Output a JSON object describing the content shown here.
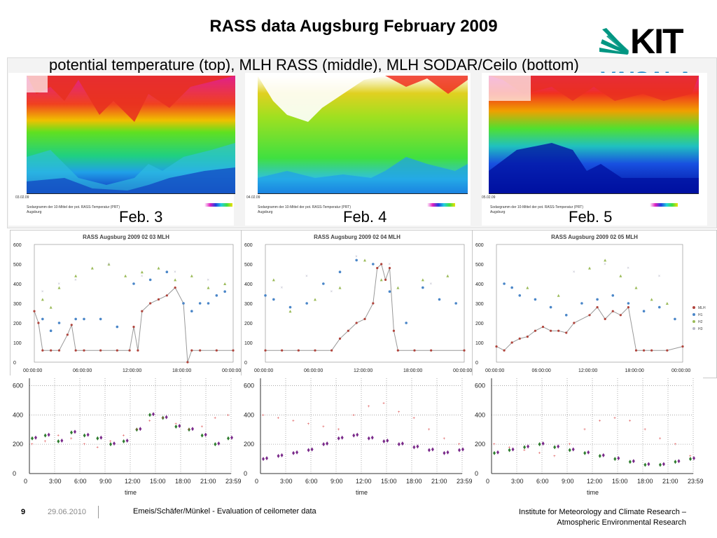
{
  "title": "RASS data Augsburg February 2009",
  "subtitle": "potential temperature (top), MLH RASS (middle), MLH SODAR/Ceilo (bottom)",
  "logos": {
    "kit": "KIT",
    "vaisala": "VAISALA"
  },
  "day_labels": [
    "Feb. 3",
    "Feb. 4",
    "Feb. 5"
  ],
  "heatmap_dates": [
    "03.02.09",
    "04.02.09",
    "05.02.09"
  ],
  "heatmap_caption": "Sodargramm der 10-Mittel der pot. RASS-Temperatur (PRT)",
  "heatmap_station": "Augsburg",
  "mlh_titles": [
    "RASS Augsburg 2009 02 03 MLH",
    "RASS Augsburg 2009 02 04 MLH",
    "RASS Augsburg 2009 02 05 MLH"
  ],
  "mlh_y_ticks": [
    "600",
    "500",
    "400",
    "300",
    "200",
    "100",
    "0"
  ],
  "mlh_x_ticks": [
    "00:00:00",
    "06:00:00",
    "12:00:00",
    "18:00:00",
    "00:00:00"
  ],
  "mlh_legend": [
    "MLH",
    "H1",
    "H2",
    "H3"
  ],
  "ceilo_y_ticks": [
    "600",
    "400",
    "200",
    "0"
  ],
  "ceilo_x_ticks": [
    "0",
    "3:00",
    "6:00",
    "9:00",
    "12:00",
    "15:00",
    "18:00",
    "21:00",
    "23:59"
  ],
  "ceilo_xlabel": "time",
  "colors": {
    "mlh": "#b0433b",
    "h1": "#4a86c8",
    "h2": "#9bbb59",
    "h3": "#b8b8c8",
    "ceilo_sodar": "#7a2a8a",
    "ceilo_green": "#2f7d2f",
    "ceilo_red": "#d94040",
    "vaisala": "#1a86c8"
  },
  "footer": {
    "page": "9",
    "date": "29.06.2010",
    "center": "Emeis/Schäfer/Münkel - Evaluation of ceilometer data",
    "right_line1": "Institute for Meteorology and Climate Research –",
    "right_line2": "Atmospheric Environmental Research"
  },
  "chart_data": [
    {
      "type": "heatmap",
      "title": "",
      "description_from_image": "potential temperature RASS sodargram",
      "dates": [
        "03.02.09",
        "04.02.09",
        "05.02.09"
      ],
      "ylim": [
        40,
        540
      ]
    },
    {
      "type": "scatter",
      "title": "RASS Augsburg 2009 02 03 MLH",
      "ylim": [
        0,
        600
      ],
      "x_ticks": [
        "00:00:00",
        "06:00:00",
        "12:00:00",
        "18:00:00",
        "00:00:00"
      ],
      "series": [
        {
          "name": "MLH",
          "x": [
            0,
            0.5,
            1,
            2,
            3,
            4,
            4.5,
            5,
            6,
            8,
            10,
            11.5,
            12,
            12.5,
            13,
            14,
            15,
            16,
            17,
            18,
            18.5,
            19,
            20,
            22,
            24
          ],
          "values": [
            260,
            200,
            60,
            60,
            60,
            140,
            190,
            60,
            60,
            60,
            60,
            60,
            180,
            60,
            260,
            300,
            320,
            340,
            380,
            300,
            0,
            60,
            60,
            60,
            60
          ]
        },
        {
          "name": "H1",
          "x": [
            1,
            2,
            3,
            5,
            6,
            8,
            10,
            12,
            14,
            16,
            18,
            19,
            20,
            21,
            22,
            23
          ],
          "values": [
            220,
            160,
            200,
            220,
            220,
            220,
            180,
            400,
            420,
            460,
            300,
            260,
            300,
            300,
            340,
            360
          ]
        },
        {
          "name": "H2",
          "x": [
            1,
            2,
            3,
            5,
            7,
            9,
            11,
            13,
            15,
            17,
            19,
            21,
            23
          ],
          "values": [
            320,
            280,
            380,
            440,
            480,
            500,
            440,
            460,
            480,
            420,
            440,
            380,
            400
          ]
        },
        {
          "name": "H3",
          "x": [
            1,
            3,
            5,
            9,
            13,
            17,
            21
          ],
          "values": [
            360,
            400,
            420,
            500,
            440,
            460,
            420
          ]
        }
      ]
    },
    {
      "type": "scatter",
      "title": "RASS Augsburg 2009 02 04 MLH",
      "ylim": [
        0,
        600
      ],
      "x_ticks": [
        "00:00:00",
        "06:00:00",
        "12:00:00",
        "18:00:00",
        "00:00:00"
      ],
      "series": [
        {
          "name": "MLH",
          "x": [
            0,
            2,
            4,
            6,
            8,
            9,
            10,
            11,
            12,
            13,
            13.5,
            14,
            14.5,
            15,
            15.5,
            16,
            18,
            20,
            24
          ],
          "values": [
            60,
            60,
            60,
            60,
            60,
            120,
            160,
            200,
            220,
            300,
            480,
            500,
            420,
            480,
            160,
            60,
            60,
            60,
            60
          ]
        },
        {
          "name": "H1",
          "x": [
            0,
            1,
            3,
            5,
            7,
            9,
            11,
            13,
            15,
            17,
            19,
            21,
            23
          ],
          "values": [
            340,
            320,
            280,
            300,
            400,
            460,
            520,
            500,
            360,
            200,
            380,
            320,
            300
          ]
        },
        {
          "name": "H2",
          "x": [
            1,
            3,
            6,
            9,
            12,
            14,
            16,
            19,
            22
          ],
          "values": [
            420,
            260,
            320,
            380,
            520,
            420,
            380,
            420,
            440
          ]
        },
        {
          "name": "H3",
          "x": [
            2,
            5,
            8,
            11,
            15,
            20
          ],
          "values": [
            380,
            440,
            360,
            540,
            500,
            400
          ]
        }
      ]
    },
    {
      "type": "scatter",
      "title": "RASS Augsburg 2009 02 05 MLH",
      "ylim": [
        0,
        600
      ],
      "x_ticks": [
        "00:00:00",
        "06:00:00",
        "12:00:00",
        "18:00:00",
        "00:00:00"
      ],
      "series": [
        {
          "name": "MLH",
          "x": [
            0,
            1,
            2,
            3,
            4,
            5,
            6,
            7,
            8,
            9,
            10,
            12,
            13,
            14,
            15,
            16,
            17,
            18,
            19,
            20,
            22,
            24
          ],
          "values": [
            80,
            60,
            100,
            120,
            130,
            160,
            180,
            160,
            160,
            150,
            200,
            240,
            280,
            220,
            260,
            240,
            280,
            60,
            60,
            60,
            60,
            80
          ]
        },
        {
          "name": "H1",
          "x": [
            1,
            2,
            3,
            5,
            7,
            9,
            11,
            13,
            15,
            17,
            19,
            21,
            23
          ],
          "values": [
            400,
            380,
            340,
            320,
            280,
            240,
            300,
            320,
            340,
            300,
            260,
            280,
            220
          ]
        },
        {
          "name": "H2",
          "x": [
            4,
            8,
            12,
            14,
            16,
            18,
            20,
            22
          ],
          "values": [
            380,
            340,
            480,
            520,
            440,
            380,
            320,
            300
          ]
        },
        {
          "name": "H3",
          "x": [
            10,
            14,
            17,
            21
          ],
          "values": [
            460,
            500,
            480,
            440
          ]
        }
      ]
    },
    {
      "type": "scatter",
      "title": "",
      "ylim": [
        0,
        650
      ],
      "xlabel": "time",
      "x_ticks": [
        "0",
        "3:00",
        "6:00",
        "9:00",
        "12:00",
        "15:00",
        "18:00",
        "21:00",
        "23:59"
      ],
      "series": [
        {
          "values": [
            240,
            260,
            220,
            280,
            260,
            240,
            200,
            220,
            300,
            400,
            380,
            320,
            300,
            260,
            200,
            240
          ]
        },
        {
          "values": [
            200,
            220,
            260,
            240,
            200,
            180,
            220,
            260,
            300,
            360,
            380,
            340,
            300,
            320,
            380,
            400
          ]
        }
      ]
    },
    {
      "type": "scatter",
      "title": "",
      "ylim": [
        0,
        650
      ],
      "xlabel": "time",
      "x_ticks": [
        "0",
        "3:00",
        "6:00",
        "9:00",
        "12:00",
        "15:00",
        "18:00",
        "21:00",
        "23:59"
      ],
      "series": [
        {
          "values": [
            100,
            120,
            140,
            160,
            200,
            240,
            260,
            240,
            220,
            200,
            180,
            160,
            140,
            160
          ]
        },
        {
          "values": [
            400,
            380,
            360,
            340,
            320,
            300,
            400,
            460,
            480,
            420,
            380,
            300,
            240,
            200
          ]
        }
      ]
    },
    {
      "type": "scatter",
      "title": "",
      "ylim": [
        0,
        650
      ],
      "xlabel": "time",
      "x_ticks": [
        "0",
        "3:00",
        "6:00",
        "9:00",
        "12:00",
        "15:00",
        "18:00",
        "21:00",
        "23:59"
      ],
      "series": [
        {
          "values": [
            140,
            160,
            180,
            200,
            180,
            160,
            140,
            120,
            100,
            80,
            60,
            60,
            80,
            100
          ]
        },
        {
          "values": [
            200,
            180,
            160,
            140,
            120,
            200,
            300,
            360,
            380,
            360,
            300,
            240,
            200,
            120
          ]
        }
      ]
    }
  ]
}
